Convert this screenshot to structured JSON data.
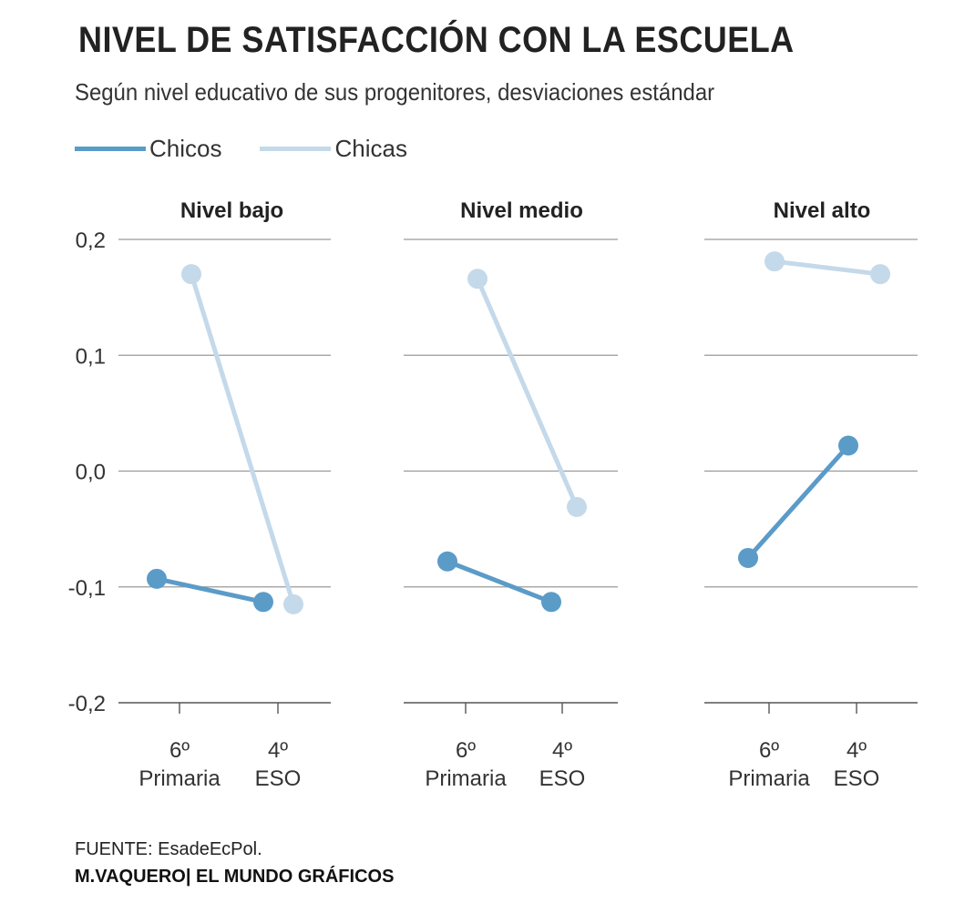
{
  "header": {
    "title": "NIVEL DE SATISFACCIÓN CON LA ESCUELA",
    "subtitle": "Según nivel educativo de sus progenitores, desviaciones estándar"
  },
  "legend": [
    {
      "label": "Chicos",
      "color": "#5b9bc8"
    },
    {
      "label": "Chicas",
      "color": "#c4d9ea"
    }
  ],
  "footer": {
    "source": "FUENTE: EsadeEcPol.",
    "credit": "M.VAQUERO| EL MUNDO GRÁFICOS"
  },
  "chart_data": {
    "type": "line",
    "ylim": [
      -0.2,
      0.2
    ],
    "yticks": [
      0.2,
      0.1,
      0.0,
      -0.1,
      -0.2
    ],
    "ytick_labels": [
      "0,2",
      "0,1",
      "0,0",
      "-0,1",
      "-0,2"
    ],
    "categories": [
      {
        "line1": "6º",
        "line2": "Primaria"
      },
      {
        "line1": "4º",
        "line2": "ESO"
      }
    ],
    "panels": [
      {
        "title": "Nivel bajo",
        "series": [
          {
            "name": "Chicos",
            "values": [
              -0.093,
              -0.113
            ]
          },
          {
            "name": "Chicas",
            "values": [
              0.17,
              -0.115
            ]
          }
        ]
      },
      {
        "title": "Nivel medio",
        "series": [
          {
            "name": "Chicos",
            "values": [
              -0.078,
              -0.113
            ]
          },
          {
            "name": "Chicas",
            "values": [
              0.166,
              -0.031
            ]
          }
        ]
      },
      {
        "title": "Nivel alto",
        "series": [
          {
            "name": "Chicos",
            "values": [
              -0.075,
              0.022
            ]
          },
          {
            "name": "Chicas",
            "values": [
              0.181,
              0.17
            ]
          }
        ]
      }
    ]
  }
}
